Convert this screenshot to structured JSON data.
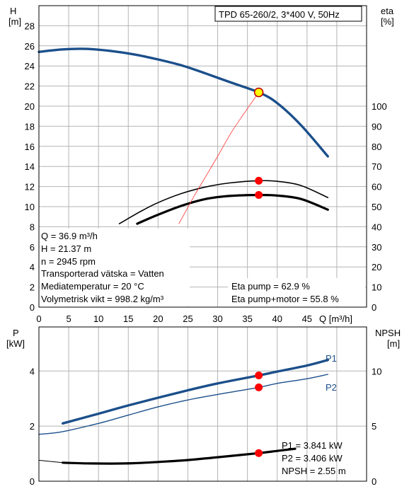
{
  "chart_data": [
    {
      "type": "line",
      "title": "TPD 65-260/2, 3*400 V, 50Hz",
      "xlabel": "Q [m³/h]",
      "ylabel_left": [
        "H",
        "[m]"
      ],
      "ylabel_right": [
        "eta",
        "[%]"
      ],
      "xlim": [
        0,
        55
      ],
      "xticks": [
        "0",
        "5",
        "10",
        "15",
        "20",
        "25",
        "30",
        "35",
        "40",
        "45"
      ],
      "ylim_left": [
        0,
        30
      ],
      "yticks_left": [
        "0",
        "2",
        "4",
        "6",
        "8",
        "10",
        "12",
        "14",
        "16",
        "18",
        "20",
        "22",
        "24",
        "26",
        "28"
      ],
      "ylim_right": [
        0,
        150
      ],
      "yticks_right": [
        "0",
        "10",
        "20",
        "30",
        "40",
        "50",
        "60",
        "70",
        "80",
        "90",
        "100"
      ],
      "grid": true,
      "series": [
        {
          "axis": "left",
          "color": "#1b4f8a",
          "x": [
            0,
            4,
            8,
            12,
            16,
            20,
            24,
            28,
            32,
            36.9,
            40,
            44,
            48.5
          ],
          "y": [
            25.4,
            25.65,
            25.7,
            25.5,
            25.15,
            24.65,
            24.05,
            23.25,
            22.4,
            21.37,
            20.3,
            18.1,
            15.0
          ]
        },
        {
          "axis": "right",
          "color": "#000000",
          "x": [
            13.5,
            17,
            20,
            24,
            28,
            32,
            36.9,
            40,
            44,
            48.5
          ],
          "y": [
            41.5,
            47.5,
            52,
            56.6,
            59.8,
            61.8,
            62.9,
            62.6,
            60.5,
            54.5
          ]
        },
        {
          "axis": "right",
          "color": "#000000",
          "x": [
            16.5,
            20,
            24,
            28,
            32,
            36.9,
            40,
            44,
            48.5
          ],
          "y": [
            41.5,
            46,
            50.5,
            53.8,
            55.3,
            55.8,
            55.5,
            53.8,
            48.5
          ]
        },
        {
          "axis": "left",
          "color": "#ff3030",
          "x": [
            23.5,
            26,
            28,
            30,
            32,
            34,
            36.9
          ],
          "y": [
            8.3,
            11.0,
            13.0,
            15.0,
            17.1,
            18.9,
            21.37
          ]
        }
      ],
      "operating_points": [
        {
          "x": 36.9,
          "y": 21.37,
          "axis": "left",
          "fill": "#ffff00"
        },
        {
          "x": 36.9,
          "y": 62.9,
          "axis": "right",
          "fill": "#ff0000"
        },
        {
          "x": 36.9,
          "y": 55.8,
          "axis": "right",
          "fill": "#ff0000"
        }
      ],
      "info_lines": [
        "Q = 36.9 m³/h",
        "H = 21.37 m",
        "n = 2945 rpm",
        "Transporterad vätska = Vatten",
        "Mediatemperatur = 20 °C",
        "Volymetrisk vikt = 998.2 kg/m³"
      ],
      "eta_lines": [
        "Eta pump = 62.9 %",
        "Eta pump+motor = 55.8 %"
      ]
    },
    {
      "type": "line",
      "ylabel_left": [
        "P",
        "[kW]"
      ],
      "ylabel_right": [
        "NPSH",
        "[m]"
      ],
      "xlim": [
        0,
        55
      ],
      "ylim_left": [
        0,
        5.6
      ],
      "yticks_left": [
        "0",
        "2",
        "4"
      ],
      "ylim_right": [
        0,
        14
      ],
      "yticks_right": [
        "0",
        "5",
        "10"
      ],
      "grid": true,
      "series": [
        {
          "name": "P1",
          "axis": "left",
          "color": "#1b4f8a",
          "x": [
            4,
            10,
            15,
            20,
            25,
            30,
            36.9,
            40,
            45,
            48.5
          ],
          "y": [
            2.1,
            2.45,
            2.75,
            3.03,
            3.3,
            3.55,
            3.841,
            3.98,
            4.2,
            4.4
          ]
        },
        {
          "name": "P2",
          "axis": "left",
          "color": "#1b4f8a",
          "x": [
            0,
            4,
            10,
            15,
            20,
            25,
            30,
            36.9,
            40,
            45,
            48.5
          ],
          "y": [
            1.7,
            1.8,
            2.1,
            2.4,
            2.7,
            2.95,
            3.15,
            3.406,
            3.55,
            3.72,
            3.88
          ]
        },
        {
          "name": "NPSH",
          "axis": "right",
          "color": "#000000",
          "x": [
            4,
            8,
            12,
            16,
            20,
            25,
            30,
            36.9,
            40,
            43
          ],
          "y": [
            1.68,
            1.62,
            1.6,
            1.64,
            1.75,
            1.92,
            2.18,
            2.55,
            2.75,
            2.95
          ]
        },
        {
          "axis": "right",
          "color": "#000000",
          "x": [
            0,
            4
          ],
          "y": [
            1.9,
            1.68
          ]
        }
      ],
      "operating_points": [
        {
          "x": 36.9,
          "y": 3.841,
          "axis": "left",
          "fill": "#ff0000"
        },
        {
          "x": 36.9,
          "y": 3.406,
          "axis": "left",
          "fill": "#ff0000"
        },
        {
          "x": 36.9,
          "y": 2.55,
          "axis": "right",
          "fill": "#ff0000"
        }
      ],
      "series_labels": [
        "P1",
        "P2"
      ],
      "info_lines": [
        "P1 = 3.841 kW",
        "P2 = 3.406 kW",
        "NPSH = 2.55 m"
      ]
    }
  ]
}
